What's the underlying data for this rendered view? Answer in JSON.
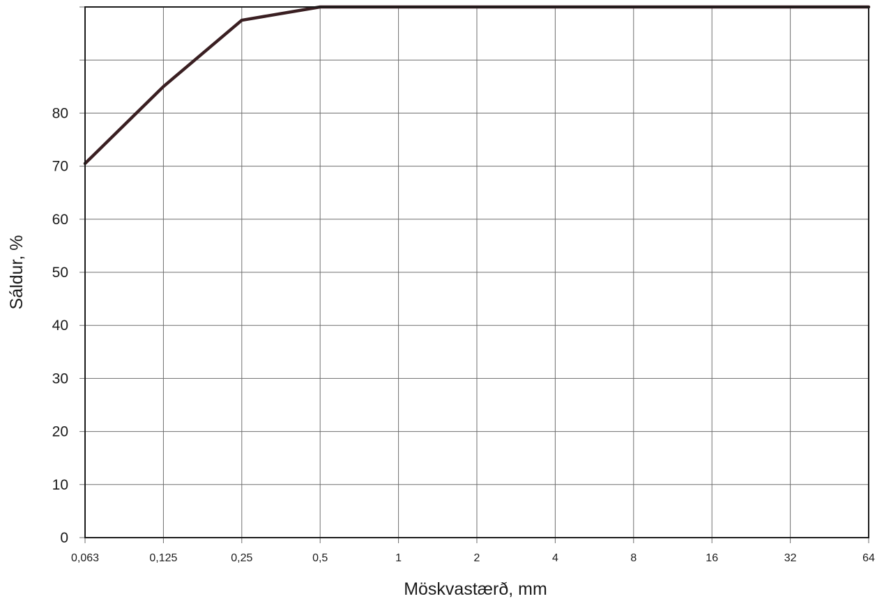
{
  "chart_data": {
    "type": "line",
    "title": "",
    "xlabel": "Möskvastærð, mm",
    "ylabel": "Sáldur, %",
    "x_scale": "log2",
    "x_ticks": [
      "0,063",
      "0,125",
      "0,25",
      "0,5",
      "1",
      "2",
      "4",
      "8",
      "16",
      "32",
      "64"
    ],
    "y_ticks": [
      "0",
      "10",
      "20",
      "30",
      "40",
      "50",
      "60",
      "70",
      "80"
    ],
    "ylim": [
      0,
      100
    ],
    "grid": true,
    "legend": "none",
    "series": [
      {
        "color": "#3a1f22",
        "points": [
          {
            "x": "0,063",
            "y": 70.5
          },
          {
            "x": "0,125",
            "y": 85
          },
          {
            "x": "0,25",
            "y": 97.5
          },
          {
            "x": "0,5",
            "y": 100
          },
          {
            "x": "1",
            "y": 100
          },
          {
            "x": "2",
            "y": 100
          },
          {
            "x": "4",
            "y": 100
          },
          {
            "x": "8",
            "y": 100
          },
          {
            "x": "16",
            "y": 100
          },
          {
            "x": "32",
            "y": 100
          },
          {
            "x": "64",
            "y": 100
          }
        ]
      }
    ]
  }
}
